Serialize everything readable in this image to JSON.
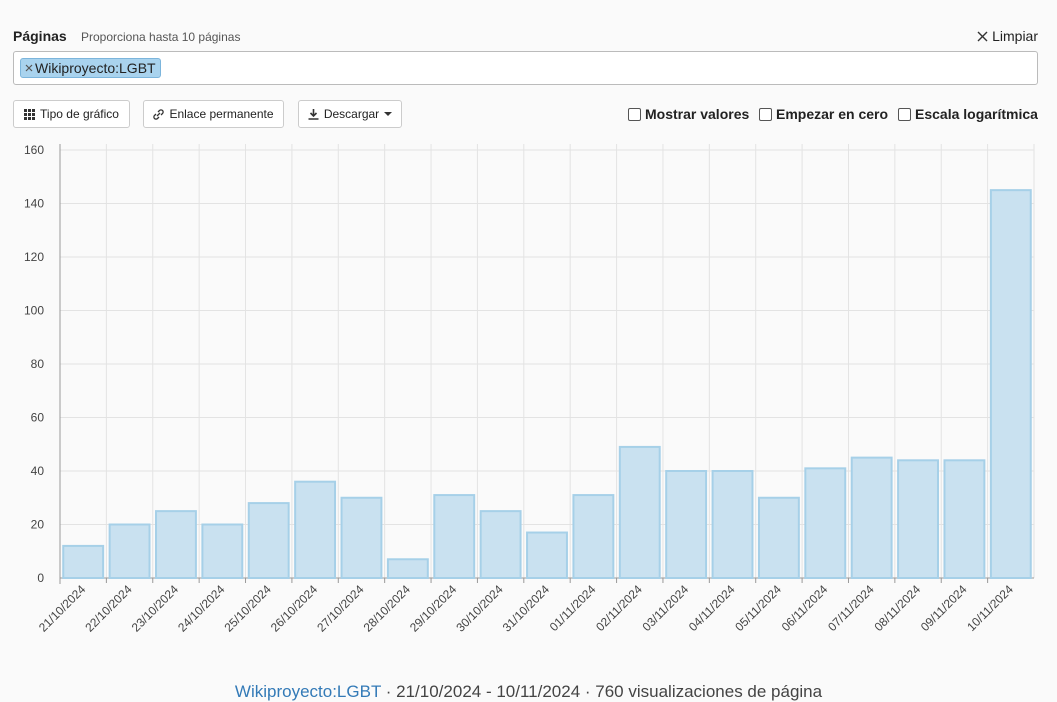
{
  "header": {
    "title": "Páginas",
    "hint": "Proporciona hasta 10 páginas",
    "clear": "Limpiar"
  },
  "input": {
    "tag": "Wikiproyecto:LGBT"
  },
  "toolbar": {
    "buttons": [
      "Tipo de gráfico",
      "Enlace permanente",
      "Descargar"
    ],
    "options": [
      "Mostrar valores",
      "Empezar en cero",
      "Escala logarítmica"
    ]
  },
  "chart_data": {
    "type": "bar",
    "categories": [
      "21/10/2024",
      "22/10/2024",
      "23/10/2024",
      "24/10/2024",
      "25/10/2024",
      "26/10/2024",
      "27/10/2024",
      "28/10/2024",
      "29/10/2024",
      "30/10/2024",
      "31/10/2024",
      "01/11/2024",
      "02/11/2024",
      "03/11/2024",
      "04/11/2024",
      "05/11/2024",
      "06/11/2024",
      "07/11/2024",
      "08/11/2024",
      "09/11/2024",
      "10/11/2024"
    ],
    "values": [
      12,
      20,
      25,
      20,
      28,
      36,
      30,
      7,
      31,
      25,
      17,
      31,
      49,
      40,
      40,
      30,
      41,
      45,
      44,
      44,
      145
    ],
    "color": "#c9e1f0",
    "edge_color": "#a6d0e8",
    "ylim": [
      0,
      160
    ],
    "yticks": [
      0,
      20,
      40,
      60,
      80,
      100,
      120,
      140,
      160
    ],
    "grid": true
  },
  "footer": {
    "page": "Wikiproyecto:LGBT",
    "range": "21/10/2024 - 10/11/2024",
    "views": "760 visualizaciones de página"
  }
}
